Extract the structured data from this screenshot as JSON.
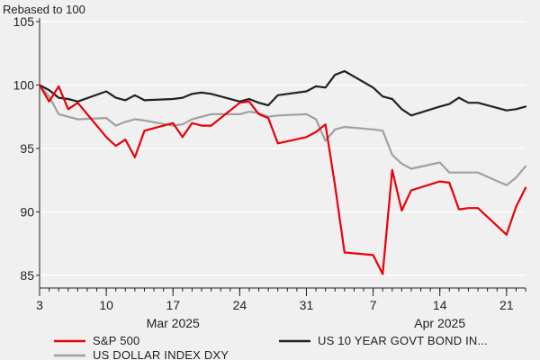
{
  "chart_data": {
    "type": "line",
    "subtitle": "Rebased to 100",
    "ylim": [
      84,
      105
    ],
    "yticks": [
      85,
      90,
      95,
      100,
      105
    ],
    "xlim": [
      "2025-03-03",
      "2025-04-23"
    ],
    "xticks": [
      {
        "date": "2025-03-03",
        "label": "3"
      },
      {
        "date": "2025-03-10",
        "label": "10"
      },
      {
        "date": "2025-03-17",
        "label": "17"
      },
      {
        "date": "2025-03-24",
        "label": "24"
      },
      {
        "date": "2025-03-31",
        "label": "31"
      },
      {
        "date": "2025-04-07",
        "label": "7"
      },
      {
        "date": "2025-04-14",
        "label": "14"
      },
      {
        "date": "2025-04-21",
        "label": "21"
      }
    ],
    "month_labels": [
      {
        "date": "2025-03-17",
        "label": "Mar 2025"
      },
      {
        "date": "2025-04-14",
        "label": "Apr 2025"
      }
    ],
    "grid": "horizontal",
    "legend_position": "bottom",
    "series": [
      {
        "name": "S&P 500",
        "color": "#e8000b",
        "x": [
          "2025-03-03",
          "2025-03-04",
          "2025-03-05",
          "2025-03-06",
          "2025-03-07",
          "2025-03-10",
          "2025-03-11",
          "2025-03-12",
          "2025-03-13",
          "2025-03-14",
          "2025-03-17",
          "2025-03-18",
          "2025-03-19",
          "2025-03-20",
          "2025-03-21",
          "2025-03-24",
          "2025-03-25",
          "2025-03-26",
          "2025-03-27",
          "2025-03-28",
          "2025-03-31",
          "2025-04-01",
          "2025-04-02",
          "2025-04-03",
          "2025-04-04",
          "2025-04-07",
          "2025-04-08",
          "2025-04-09",
          "2025-04-10",
          "2025-04-11",
          "2025-04-14",
          "2025-04-15",
          "2025-04-16",
          "2025-04-17",
          "2025-04-18",
          "2025-04-21",
          "2025-04-22",
          "2025-04-23"
        ],
        "y": [
          100,
          98.7,
          99.9,
          98.1,
          98.6,
          95.9,
          95.2,
          95.7,
          94.3,
          96.4,
          97.0,
          95.9,
          97.0,
          96.8,
          96.8,
          98.6,
          98.7,
          97.7,
          97.4,
          95.4,
          95.9,
          96.3,
          96.9,
          92.1,
          86.8,
          86.6,
          85.1,
          93.3,
          90.1,
          91.7,
          92.4,
          92.3,
          90.2,
          90.3,
          90.3,
          88.2,
          90.4,
          91.9
        ]
      },
      {
        "name": "US 10 YEAR GOVT BOND IN...",
        "color": "#222222",
        "x": [
          "2025-03-03",
          "2025-03-04",
          "2025-03-05",
          "2025-03-06",
          "2025-03-07",
          "2025-03-10",
          "2025-03-11",
          "2025-03-12",
          "2025-03-13",
          "2025-03-14",
          "2025-03-17",
          "2025-03-18",
          "2025-03-19",
          "2025-03-20",
          "2025-03-21",
          "2025-03-24",
          "2025-03-25",
          "2025-03-26",
          "2025-03-27",
          "2025-03-28",
          "2025-03-31",
          "2025-04-01",
          "2025-04-02",
          "2025-04-03",
          "2025-04-04",
          "2025-04-07",
          "2025-04-08",
          "2025-04-09",
          "2025-04-10",
          "2025-04-11",
          "2025-04-14",
          "2025-04-15",
          "2025-04-16",
          "2025-04-17",
          "2025-04-18",
          "2025-04-21",
          "2025-04-22",
          "2025-04-23"
        ],
        "y": [
          100,
          99.6,
          99.0,
          98.9,
          98.7,
          99.5,
          99.0,
          98.8,
          99.2,
          98.8,
          98.9,
          99.0,
          99.3,
          99.4,
          99.3,
          98.7,
          98.9,
          98.6,
          98.4,
          99.2,
          99.5,
          99.9,
          99.8,
          100.8,
          101.1,
          99.8,
          99.1,
          98.9,
          98.1,
          97.6,
          98.3,
          98.5,
          99.0,
          98.6,
          98.6,
          98.0,
          98.1,
          98.3
        ]
      },
      {
        "name": "US DOLLAR INDEX DXY",
        "color": "#a0a0a0",
        "x": [
          "2025-03-03",
          "2025-03-04",
          "2025-03-05",
          "2025-03-06",
          "2025-03-07",
          "2025-03-10",
          "2025-03-11",
          "2025-03-12",
          "2025-03-13",
          "2025-03-14",
          "2025-03-17",
          "2025-03-18",
          "2025-03-19",
          "2025-03-20",
          "2025-03-21",
          "2025-03-24",
          "2025-03-25",
          "2025-03-26",
          "2025-03-27",
          "2025-03-28",
          "2025-03-31",
          "2025-04-01",
          "2025-04-02",
          "2025-04-03",
          "2025-04-04",
          "2025-04-07",
          "2025-04-08",
          "2025-04-09",
          "2025-04-10",
          "2025-04-11",
          "2025-04-14",
          "2025-04-15",
          "2025-04-16",
          "2025-04-17",
          "2025-04-18",
          "2025-04-21",
          "2025-04-22",
          "2025-04-23"
        ],
        "y": [
          100,
          99.1,
          97.7,
          97.5,
          97.3,
          97.4,
          96.8,
          97.1,
          97.3,
          97.2,
          96.8,
          96.9,
          97.3,
          97.5,
          97.7,
          97.7,
          97.9,
          97.8,
          97.5,
          97.6,
          97.7,
          97.3,
          95.6,
          96.5,
          96.7,
          96.5,
          96.4,
          94.5,
          93.8,
          93.4,
          93.9,
          93.1,
          93.1,
          93.1,
          93.1,
          92.1,
          92.7,
          93.6
        ]
      }
    ]
  }
}
